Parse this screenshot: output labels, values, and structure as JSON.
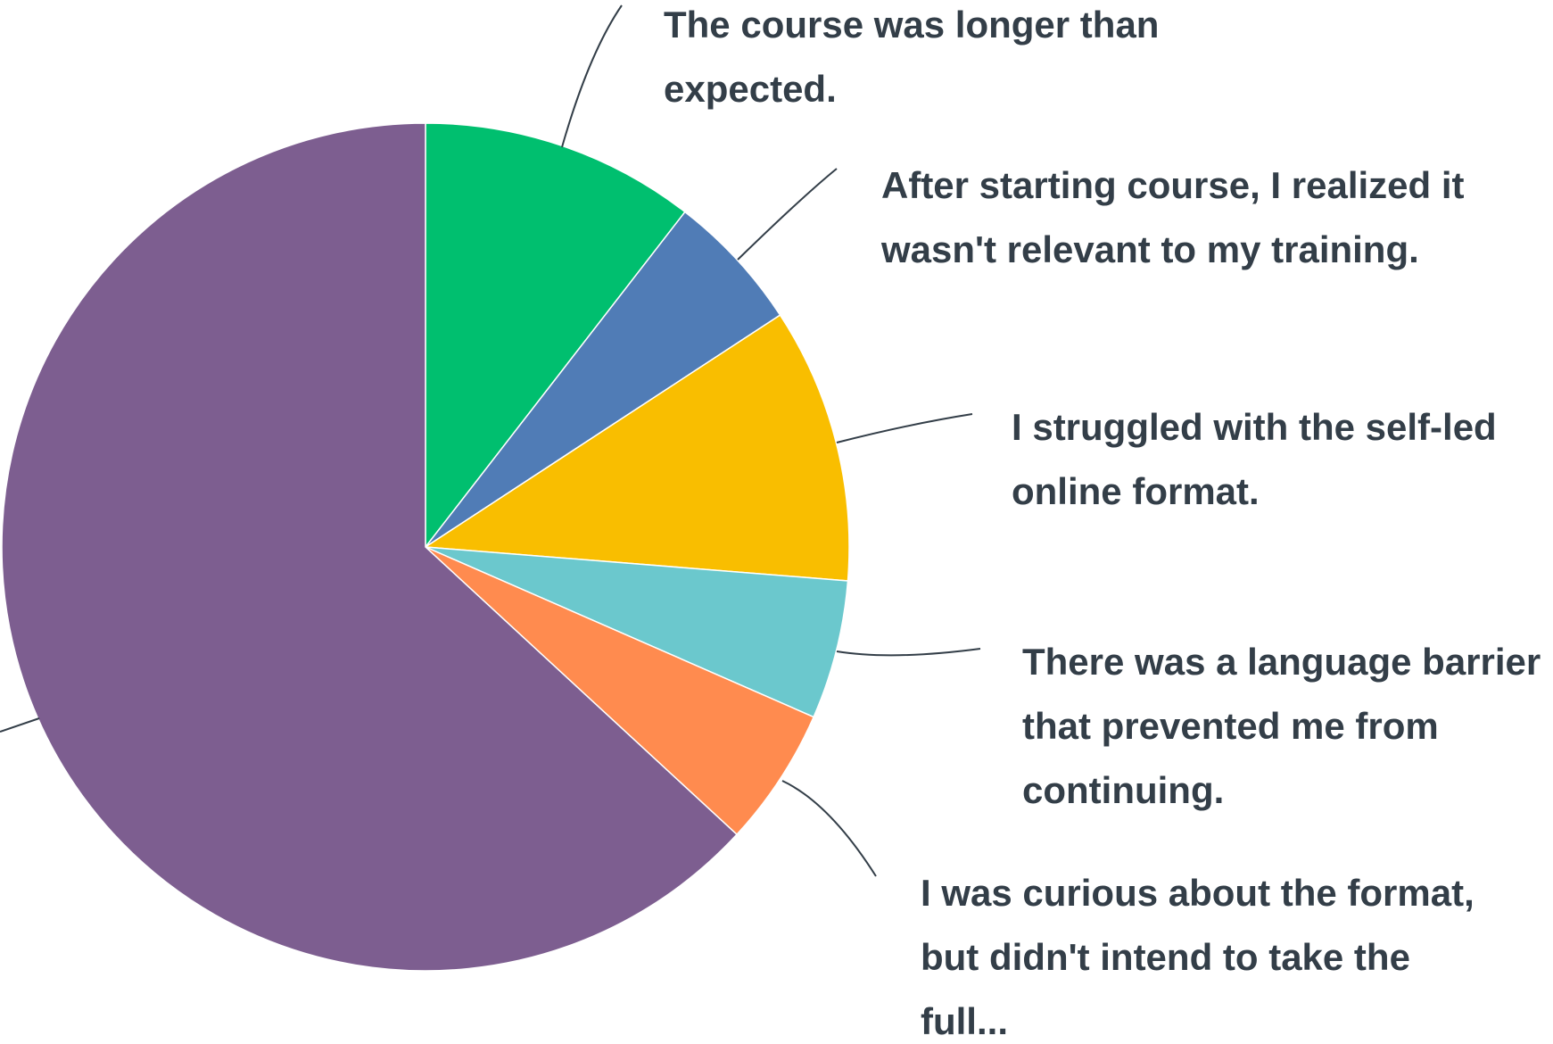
{
  "chart_data": {
    "type": "pie",
    "categories": [
      "The course was longer than expected.",
      "After starting course, I realized it wasn't relevant to my training.",
      "I struggled with the self-led online format.",
      "There was a language barrier that prevented me from continuing.",
      "I was curious about the format, but didn't intend to take the full...",
      null
    ],
    "values": [
      10.5,
      5.3,
      10.5,
      5.3,
      5.3,
      63.2
    ],
    "colors": [
      "#00bf6f",
      "#507cb6",
      "#f9be00",
      "#6bc8cd",
      "#ff8b4f",
      "#7d5e90"
    ]
  }
}
